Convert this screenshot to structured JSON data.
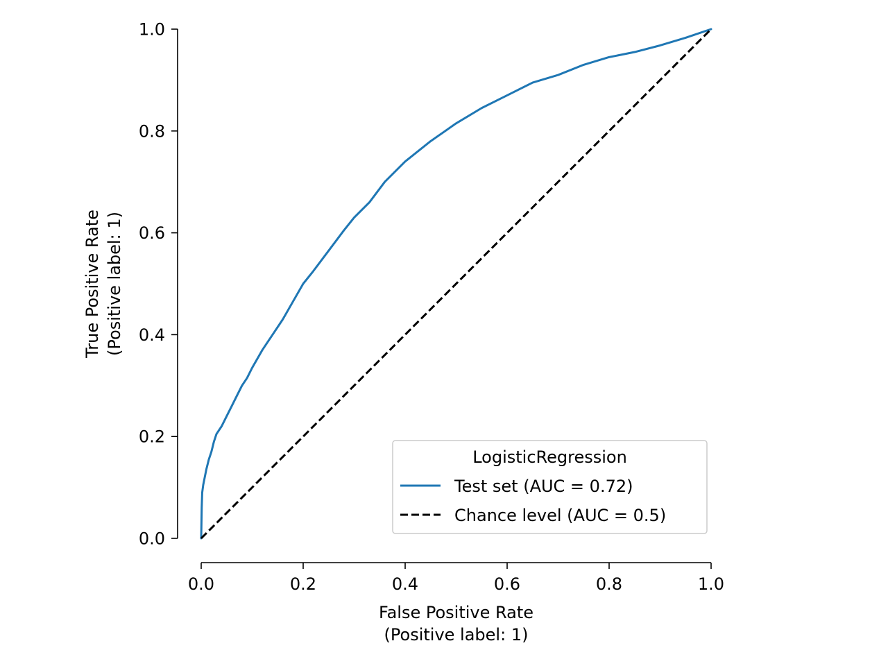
{
  "chart_data": {
    "type": "line",
    "xlabel": "False Positive Rate",
    "xlabel_sub": "(Positive label: 1)",
    "ylabel": "True Positive Rate",
    "ylabel_sub": "(Positive label: 1)",
    "xlim": [
      0,
      1
    ],
    "ylim": [
      0,
      1
    ],
    "x_ticks": [
      "0.0",
      "0.2",
      "0.4",
      "0.6",
      "0.8",
      "1.0"
    ],
    "y_ticks": [
      "0.0",
      "0.2",
      "0.4",
      "0.6",
      "0.8",
      "1.0"
    ],
    "grid": false,
    "legend": {
      "title": "LogisticRegression",
      "position": "lower-right"
    },
    "series": [
      {
        "name": "Test set (AUC = 0.72)",
        "color": "#1f77b4",
        "style": "solid",
        "x": [
          0,
          0.0005,
          0.001,
          0.002,
          0.004,
          0.007,
          0.01,
          0.015,
          0.02,
          0.025,
          0.03,
          0.04,
          0.05,
          0.06,
          0.07,
          0.08,
          0.09,
          0.1,
          0.12,
          0.14,
          0.16,
          0.18,
          0.2,
          0.22,
          0.25,
          0.28,
          0.3,
          0.33,
          0.36,
          0.4,
          0.45,
          0.5,
          0.55,
          0.6,
          0.65,
          0.7,
          0.75,
          0.8,
          0.85,
          0.9,
          0.95,
          1.0
        ],
        "y": [
          0,
          0.03,
          0.06,
          0.09,
          0.105,
          0.12,
          0.135,
          0.155,
          0.17,
          0.19,
          0.205,
          0.22,
          0.24,
          0.26,
          0.28,
          0.3,
          0.315,
          0.335,
          0.37,
          0.4,
          0.43,
          0.465,
          0.5,
          0.525,
          0.565,
          0.605,
          0.63,
          0.66,
          0.7,
          0.74,
          0.78,
          0.815,
          0.845,
          0.87,
          0.895,
          0.91,
          0.93,
          0.945,
          0.955,
          0.968,
          0.983,
          1.0
        ]
      },
      {
        "name": "Chance level (AUC = 0.5)",
        "color": "#000000",
        "style": "dashed",
        "x": [
          0,
          1
        ],
        "y": [
          0,
          1
        ]
      }
    ]
  }
}
